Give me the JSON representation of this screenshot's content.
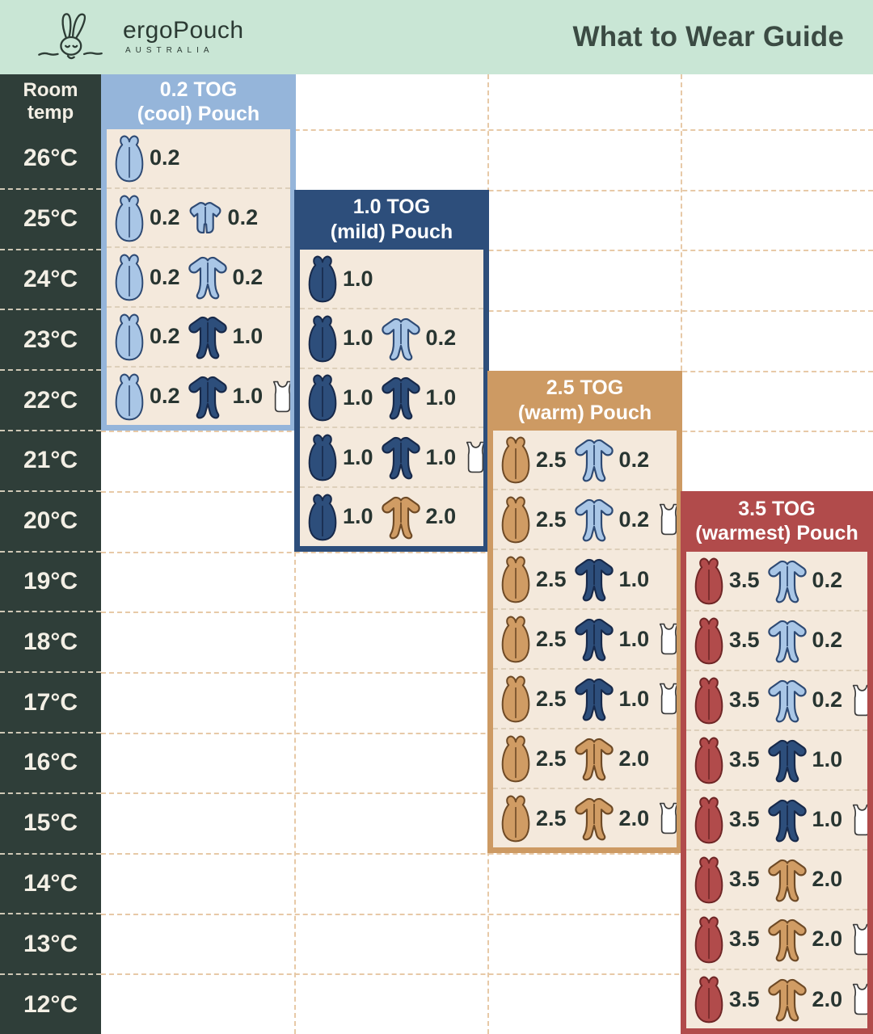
{
  "header": {
    "brand": "ergoPouch",
    "brand_sub": "AUSTRALIA",
    "title": "What to Wear Guide",
    "background": "#c9e6d5"
  },
  "temp_column": {
    "header_line1": "Room",
    "header_line2": "temp",
    "temps": [
      "26°C",
      "25°C",
      "24°C",
      "23°C",
      "22°C",
      "21°C",
      "20°C",
      "19°C",
      "18°C",
      "17°C",
      "16°C",
      "15°C",
      "14°C",
      "13°C",
      "12°C"
    ],
    "background": "#2f3e39"
  },
  "palette": {
    "lightblue": {
      "fill": "#a9c6e6",
      "stroke": "#2e4a74"
    },
    "navy": {
      "fill": "#2d4e7b",
      "stroke": "#17294a"
    },
    "tan": {
      "fill": "#d09c64",
      "stroke": "#6e4a26"
    },
    "red": {
      "fill": "#b14b4b",
      "stroke": "#6f2626"
    },
    "white": {
      "fill": "#ffffff",
      "stroke": "#3b3b3b"
    }
  },
  "panels": [
    {
      "id": "tog-0-2",
      "title_line1": "0.2 TOG",
      "title_line2": "(cool) Pouch",
      "color": "#95b5da",
      "col": 0,
      "start_temp": "26°C",
      "rows": [
        {
          "temp": "26°C",
          "items": [
            {
              "icon": "pouch",
              "color": "lightblue",
              "value": "0.2"
            }
          ]
        },
        {
          "temp": "25°C",
          "items": [
            {
              "icon": "pouch",
              "color": "lightblue",
              "value": "0.2"
            },
            {
              "icon": "romper",
              "color": "lightblue",
              "value": "0.2"
            }
          ]
        },
        {
          "temp": "24°C",
          "items": [
            {
              "icon": "pouch",
              "color": "lightblue",
              "value": "0.2"
            },
            {
              "icon": "onesie",
              "color": "lightblue",
              "value": "0.2"
            }
          ]
        },
        {
          "temp": "23°C",
          "items": [
            {
              "icon": "pouch",
              "color": "lightblue",
              "value": "0.2"
            },
            {
              "icon": "onesie",
              "color": "navy",
              "value": "1.0"
            }
          ]
        },
        {
          "temp": "22°C",
          "items": [
            {
              "icon": "pouch",
              "color": "lightblue",
              "value": "0.2"
            },
            {
              "icon": "onesie",
              "color": "navy",
              "value": "1.0"
            },
            {
              "icon": "singlet",
              "color": "white"
            }
          ]
        }
      ]
    },
    {
      "id": "tog-1-0",
      "title_line1": "1.0 TOG",
      "title_line2": "(mild) Pouch",
      "color": "#2d4e7b",
      "col": 1,
      "start_temp": "24°C",
      "rows": [
        {
          "temp": "24°C",
          "items": [
            {
              "icon": "pouch",
              "color": "navy",
              "value": "1.0"
            }
          ]
        },
        {
          "temp": "23°C",
          "items": [
            {
              "icon": "pouch",
              "color": "navy",
              "value": "1.0"
            },
            {
              "icon": "onesie",
              "color": "lightblue",
              "value": "0.2"
            }
          ]
        },
        {
          "temp": "22°C",
          "items": [
            {
              "icon": "pouch",
              "color": "navy",
              "value": "1.0"
            },
            {
              "icon": "onesie",
              "color": "navy",
              "value": "1.0"
            }
          ]
        },
        {
          "temp": "21°C",
          "items": [
            {
              "icon": "pouch",
              "color": "navy",
              "value": "1.0"
            },
            {
              "icon": "onesie",
              "color": "navy",
              "value": "1.0"
            },
            {
              "icon": "singlet",
              "color": "white"
            }
          ]
        },
        {
          "temp": "20°C",
          "items": [
            {
              "icon": "pouch",
              "color": "navy",
              "value": "1.0"
            },
            {
              "icon": "onesie",
              "color": "tan",
              "value": "2.0"
            }
          ]
        }
      ]
    },
    {
      "id": "tog-2-5",
      "title_line1": "2.5 TOG",
      "title_line2": "(warm) Pouch",
      "color": "#cd9a63",
      "col": 2,
      "start_temp": "21°C",
      "rows": [
        {
          "temp": "21°C",
          "items": [
            {
              "icon": "pouch",
              "color": "tan",
              "value": "2.5"
            },
            {
              "icon": "onesie",
              "color": "lightblue",
              "value": "0.2"
            }
          ]
        },
        {
          "temp": "20°C",
          "items": [
            {
              "icon": "pouch",
              "color": "tan",
              "value": "2.5"
            },
            {
              "icon": "onesie",
              "color": "lightblue",
              "value": "0.2"
            },
            {
              "icon": "singlet",
              "color": "white"
            }
          ]
        },
        {
          "temp": "19°C",
          "items": [
            {
              "icon": "pouch",
              "color": "tan",
              "value": "2.5"
            },
            {
              "icon": "onesie",
              "color": "navy",
              "value": "1.0"
            }
          ]
        },
        {
          "temp": "18°C",
          "items": [
            {
              "icon": "pouch",
              "color": "tan",
              "value": "2.5"
            },
            {
              "icon": "onesie",
              "color": "navy",
              "value": "1.0"
            },
            {
              "icon": "singlet",
              "color": "white"
            }
          ]
        },
        {
          "temp": "17°C",
          "items": [
            {
              "icon": "pouch",
              "color": "tan",
              "value": "2.5"
            },
            {
              "icon": "onesie",
              "color": "navy",
              "value": "1.0"
            },
            {
              "icon": "singlet",
              "color": "white"
            }
          ]
        },
        {
          "temp": "16°C",
          "items": [
            {
              "icon": "pouch",
              "color": "tan",
              "value": "2.5"
            },
            {
              "icon": "onesie",
              "color": "tan",
              "value": "2.0"
            }
          ]
        },
        {
          "temp": "15°C",
          "items": [
            {
              "icon": "pouch",
              "color": "tan",
              "value": "2.5"
            },
            {
              "icon": "onesie",
              "color": "tan",
              "value": "2.0"
            },
            {
              "icon": "singlet",
              "color": "white"
            }
          ]
        }
      ]
    },
    {
      "id": "tog-3-5",
      "title_line1": "3.5 TOG",
      "title_line2": "(warmest) Pouch",
      "color": "#b14b4b",
      "col": 3,
      "start_temp": "19°C",
      "rows": [
        {
          "temp": "19°C",
          "items": [
            {
              "icon": "pouch",
              "color": "red",
              "value": "3.5"
            },
            {
              "icon": "onesie",
              "color": "lightblue",
              "value": "0.2"
            }
          ]
        },
        {
          "temp": "18°C",
          "items": [
            {
              "icon": "pouch",
              "color": "red",
              "value": "3.5"
            },
            {
              "icon": "onesie",
              "color": "lightblue",
              "value": "0.2"
            }
          ]
        },
        {
          "temp": "17°C",
          "items": [
            {
              "icon": "pouch",
              "color": "red",
              "value": "3.5"
            },
            {
              "icon": "onesie",
              "color": "lightblue",
              "value": "0.2"
            },
            {
              "icon": "singlet",
              "color": "white"
            }
          ]
        },
        {
          "temp": "16°C",
          "items": [
            {
              "icon": "pouch",
              "color": "red",
              "value": "3.5"
            },
            {
              "icon": "onesie",
              "color": "navy",
              "value": "1.0"
            }
          ]
        },
        {
          "temp": "15°C",
          "items": [
            {
              "icon": "pouch",
              "color": "red",
              "value": "3.5"
            },
            {
              "icon": "onesie",
              "color": "navy",
              "value": "1.0"
            },
            {
              "icon": "singlet",
              "color": "white"
            }
          ]
        },
        {
          "temp": "14°C",
          "items": [
            {
              "icon": "pouch",
              "color": "red",
              "value": "3.5"
            },
            {
              "icon": "onesie",
              "color": "tan",
              "value": "2.0"
            }
          ]
        },
        {
          "temp": "13°C",
          "items": [
            {
              "icon": "pouch",
              "color": "red",
              "value": "3.5"
            },
            {
              "icon": "onesie",
              "color": "tan",
              "value": "2.0"
            },
            {
              "icon": "singlet",
              "color": "white"
            }
          ]
        },
        {
          "temp": "12°C",
          "items": [
            {
              "icon": "pouch",
              "color": "red",
              "value": "3.5"
            },
            {
              "icon": "onesie",
              "color": "tan",
              "value": "2.0"
            },
            {
              "icon": "singlet",
              "color": "white"
            }
          ]
        }
      ]
    }
  ],
  "chart_data": {
    "type": "table",
    "title": "What to Wear Guide",
    "row_axis": "Room temp (°C)",
    "columns": [
      "0.2 TOG (cool) Pouch",
      "1.0 TOG (mild) Pouch",
      "2.5 TOG (warm) Pouch",
      "3.5 TOG (warmest) Pouch"
    ],
    "rows": [
      {
        "temp": "26°C",
        "cells": [
          "pouch 0.2",
          "",
          "",
          ""
        ]
      },
      {
        "temp": "25°C",
        "cells": [
          "pouch 0.2 + short-sleeve romper 0.2",
          "",
          "",
          ""
        ]
      },
      {
        "temp": "24°C",
        "cells": [
          "pouch 0.2 + onesie 0.2",
          "pouch 1.0",
          "",
          ""
        ]
      },
      {
        "temp": "23°C",
        "cells": [
          "pouch 0.2 + onesie 1.0",
          "pouch 1.0 + onesie 0.2",
          "",
          ""
        ]
      },
      {
        "temp": "22°C",
        "cells": [
          "pouch 0.2 + onesie 1.0 + singlet",
          "pouch 1.0 + onesie 1.0",
          "",
          ""
        ]
      },
      {
        "temp": "21°C",
        "cells": [
          "",
          "pouch 1.0 + onesie 1.0 + singlet",
          "pouch 2.5 + onesie 0.2",
          ""
        ]
      },
      {
        "temp": "20°C",
        "cells": [
          "",
          "pouch 1.0 + onesie 2.0",
          "pouch 2.5 + onesie 0.2 + singlet",
          ""
        ]
      },
      {
        "temp": "19°C",
        "cells": [
          "",
          "",
          "pouch 2.5 + onesie 1.0",
          "pouch 3.5 + onesie 0.2"
        ]
      },
      {
        "temp": "18°C",
        "cells": [
          "",
          "",
          "pouch 2.5 + onesie 1.0 + singlet",
          "pouch 3.5 + onesie 0.2"
        ]
      },
      {
        "temp": "17°C",
        "cells": [
          "",
          "",
          "pouch 2.5 + onesie 1.0 + singlet",
          "pouch 3.5 + onesie 0.2 + singlet"
        ]
      },
      {
        "temp": "16°C",
        "cells": [
          "",
          "",
          "pouch 2.5 + onesie 2.0",
          "pouch 3.5 + onesie 1.0"
        ]
      },
      {
        "temp": "15°C",
        "cells": [
          "",
          "",
          "pouch 2.5 + onesie 2.0 + singlet",
          "pouch 3.5 + onesie 1.0 + singlet"
        ]
      },
      {
        "temp": "14°C",
        "cells": [
          "",
          "",
          "",
          "pouch 3.5 + onesie 2.0"
        ]
      },
      {
        "temp": "13°C",
        "cells": [
          "",
          "",
          "",
          "pouch 3.5 + onesie 2.0 + singlet"
        ]
      },
      {
        "temp": "12°C",
        "cells": [
          "",
          "",
          "",
          "pouch 3.5 + onesie 2.0 + singlet"
        ]
      }
    ]
  }
}
